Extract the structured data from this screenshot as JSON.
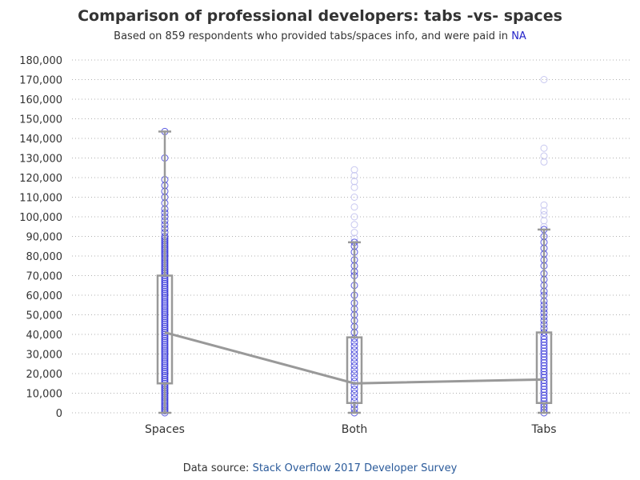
{
  "chart_data": {
    "type": "boxplot",
    "title": "Comparison of professional developers: tabs -vs- spaces",
    "subtitle_prefix": "Based on 859 respondents who provided tabs/spaces info, and were paid in ",
    "subtitle_highlight": "NA",
    "footer_prefix": "Data source: ",
    "footer_link": "Stack Overflow 2017 Developer Survey",
    "categories": [
      "Spaces",
      "Both",
      "Tabs"
    ],
    "ylim": [
      0,
      180000
    ],
    "yticks": [
      0,
      10000,
      20000,
      30000,
      40000,
      50000,
      60000,
      70000,
      80000,
      90000,
      100000,
      110000,
      120000,
      130000,
      140000,
      150000,
      160000,
      170000,
      180000
    ],
    "ytick_labels": [
      "0",
      "10,000",
      "20,000",
      "30,000",
      "40,000",
      "50,000",
      "60,000",
      "70,000",
      "80,000",
      "90,000",
      "100,000",
      "110,000",
      "120,000",
      "130,000",
      "140,000",
      "150,000",
      "160,000",
      "170,000",
      "180,000"
    ],
    "grid": true,
    "colors": {
      "box": "#999999",
      "median_line": "#999999",
      "point": "#2323d6",
      "outlier": "#c8c8f0",
      "grid": "#b0b0b0"
    },
    "boxes": [
      {
        "category": "Spaces",
        "whisker_low": 0,
        "q1": 15000,
        "median": 41000,
        "q3": 70000,
        "whisker_high": 143500
      },
      {
        "category": "Both",
        "whisker_low": 0,
        "q1": 5000,
        "median": 15000,
        "q3": 38500,
        "whisker_high": 87000
      },
      {
        "category": "Tabs",
        "whisker_low": 0,
        "q1": 5000,
        "median": 17000,
        "q3": 41000,
        "whisker_high": 93500
      }
    ],
    "points": {
      "Spaces": [
        0,
        1000,
        2000,
        3000,
        4000,
        5000,
        6000,
        7000,
        8000,
        9000,
        10000,
        11000,
        12000,
        13000,
        14000,
        15000,
        16000,
        17000,
        18000,
        19000,
        20000,
        21000,
        22000,
        23000,
        24000,
        25000,
        26000,
        27000,
        28000,
        29000,
        30000,
        31000,
        32000,
        33000,
        34000,
        35000,
        36000,
        37000,
        38000,
        39000,
        40000,
        41000,
        42000,
        43000,
        44000,
        45000,
        46000,
        47000,
        48000,
        49000,
        50000,
        51000,
        52000,
        53000,
        54000,
        55000,
        56000,
        57000,
        58000,
        59000,
        60000,
        61000,
        62000,
        63000,
        64000,
        65000,
        66000,
        67000,
        68000,
        69000,
        70000,
        71000,
        72000,
        73000,
        74000,
        75000,
        76000,
        77000,
        78000,
        79000,
        80000,
        81000,
        82000,
        83000,
        84000,
        85000,
        86000,
        87000,
        88000,
        89000,
        90000,
        92000,
        94000,
        96000,
        98000,
        100000,
        102000,
        104000,
        107000,
        110000,
        113000,
        116000,
        119000,
        130000,
        143500
      ],
      "Both": [
        0,
        2000,
        4000,
        6000,
        8000,
        10000,
        12000,
        14000,
        16000,
        18000,
        20000,
        22000,
        24000,
        26000,
        28000,
        30000,
        32000,
        34000,
        36000,
        38000,
        41000,
        44000,
        47000,
        50000,
        53000,
        56000,
        60000,
        65000,
        70000,
        72000,
        75000,
        78000,
        82000,
        85000,
        87000
      ],
      "Tabs": [
        0,
        1500,
        3000,
        4500,
        6000,
        7500,
        9000,
        10500,
        12000,
        13500,
        15000,
        16500,
        18000,
        19500,
        21000,
        22500,
        24000,
        25500,
        27000,
        28500,
        30000,
        31500,
        33000,
        34500,
        36000,
        37500,
        39000,
        41000,
        43000,
        45000,
        47000,
        49000,
        51000,
        53000,
        55000,
        57000,
        60000,
        62000,
        65000,
        68000,
        71000,
        75000,
        78000,
        81000,
        84000,
        87000,
        90000,
        93500
      ]
    },
    "outliers": {
      "Spaces": [],
      "Both": [
        89000,
        92000,
        96000,
        100000,
        105000,
        110000,
        115000,
        118000,
        121000,
        124000
      ],
      "Tabs": [
        95000,
        98000,
        101000,
        103000,
        106000,
        128000,
        131000,
        135000,
        170000
      ]
    }
  }
}
